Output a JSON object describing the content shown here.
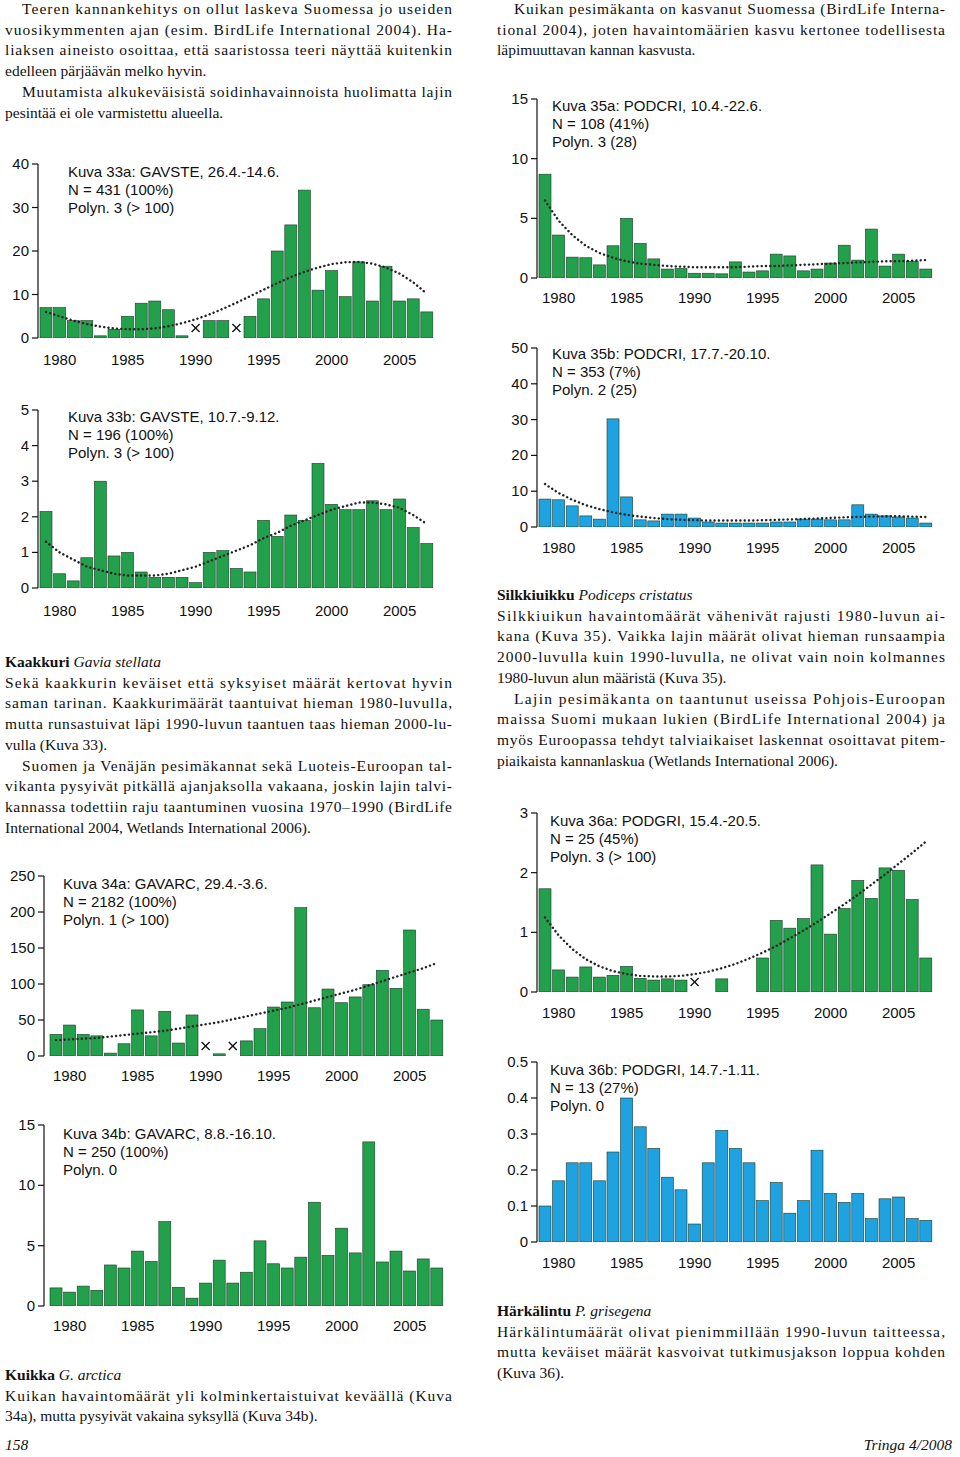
{
  "document": {
    "left_intro": {
      "paragraphs": [
        [
          "Teeren kannankehitys on ollut laskeva Suomessa jo useiden",
          "vuosikymmenten ajan (esim. BirdLife International 2004). Ha-",
          "liaksen aineisto osoittaa, että saaristossa teeri näyttää kuitenkin",
          "edelleen pärjäävän melko hyvin."
        ],
        [
          "Muutamista alkukeväisistä soidinhavainnoista huolimatta lajin",
          "pesintää ei ole varmistettu alueella."
        ]
      ]
    },
    "kaakkuri": {
      "heading": "Kaakkuri",
      "latin": "Gavia stellata",
      "paragraphs": [
        [
          "Sekä kaakkurin keväiset että syksyiset määrät kertovat hyvin",
          "saman tarinan. Kaakkurimäärät taantuivat hieman 1980-luvulla,",
          "mutta runsastuivat läpi 1990-luvun taantuen taas hieman 2000-lu-",
          "vulla (Kuva 33)."
        ],
        [
          "Suomen ja Venäjän pesimäkannat sekä Luoteis-Euroopan tal-",
          "vikanta pysyivät pitkällä ajanjaksolla vakaana, joskin lajin talvi-",
          "kannassa todettiin raju taantuminen vuosina 1970–1990 (BirdLife",
          "International 2004, Wetlands International 2006)."
        ]
      ]
    },
    "kuikka": {
      "heading": "Kuikka",
      "latin": "G. arctica",
      "paragraphs": [
        [
          "Kuikan havaintomäärät yli kolminkertaistuivat keväällä (Kuva",
          "34a), mutta pysyivät vakaina syksyllä (Kuva 34b)."
        ]
      ]
    },
    "right_intro": {
      "paragraphs": [
        [
          "Kuikan pesimäkanta on kasvanut Suomessa (BirdLife Interna-",
          "tional 2004), joten havaintomäärien kasvu kertonee todellisesta",
          "läpimuuttavan kannan kasvusta."
        ]
      ]
    },
    "silkkiuikku": {
      "heading": "Silkkiuikku",
      "latin": "Podiceps cristatus",
      "paragraphs": [
        [
          "Silkkiuikun havaintomäärät vähenivät rajusti 1980-luvun ai-",
          "kana (Kuva 35). Vaikka lajin määrät olivat hieman runsaampia",
          "2000-luvulla kuin 1990-luvulla, ne olivat vain noin kolmannes",
          "1980-luvun alun määristä (Kuva 35)."
        ],
        [
          "Lajin pesimäkanta on taantunut useissa Pohjois-Euroopan",
          "maissa Suomi mukaan lukien (BirdLife International 2004) ja",
          "myös Euroopassa tehdyt talviaikaiset laskennat osoittavat pitem-",
          "piaikaista kannanlaskua (Wetlands International 2006)."
        ]
      ]
    },
    "harkalintu": {
      "heading": "Härkälintu",
      "latin": "P. grisegena",
      "paragraphs": [
        [
          "Härkälintumäärät olivat pienimmillään 1990-luvun taitteessa,",
          "mutta keväiset määrät kasvoivat tutkimusjakson loppua kohden",
          "(Kuva 36)."
        ]
      ]
    },
    "footer": {
      "page": "158",
      "journal": "Tringa 4/2008"
    }
  },
  "chart_data": [
    {
      "type": "bar",
      "title": "Kuva 33a: GAVSTE, 26.4.-14.6.",
      "annotations": [
        "N = 431 (100%)",
        "Polyn. 3 (> 100)"
      ],
      "categories": [
        null,
        "1980",
        null,
        null,
        null,
        null,
        "1985",
        null,
        null,
        null,
        null,
        "1990",
        null,
        null,
        null,
        null,
        "1995",
        null,
        null,
        null,
        null,
        "2000",
        null,
        null,
        null,
        null,
        "2005",
        null,
        null
      ],
      "series": [
        {
          "type": "bar",
          "color": "#22a04b",
          "values": [
            7,
            7,
            4,
            4,
            0.5,
            2,
            5,
            8,
            8.5,
            6.5,
            0.5,
            null,
            4,
            4,
            null,
            5,
            9,
            20,
            26,
            34,
            11,
            15.5,
            9.5,
            17.5,
            8.5,
            16.5,
            8.5,
            9,
            6
          ]
        },
        {
          "type": "line",
          "line_style": "dotted",
          "color": "#222222",
          "values": [
            6,
            5,
            4,
            3.2,
            2.6,
            2.2,
            2,
            2,
            2.2,
            2.7,
            3.4,
            4.3,
            5.4,
            6.7,
            8.1,
            9.6,
            11.1,
            12.6,
            14,
            15.2,
            16.2,
            17,
            17.4,
            17.5,
            17.1,
            16.2,
            14.8,
            12.8,
            10.2
          ]
        }
      ],
      "ylim": [
        0,
        40
      ],
      "yticks": [
        0,
        10,
        20,
        30,
        40
      ]
    },
    {
      "type": "bar",
      "title": "Kuva 33b: GAVSTE, 10.7.-9.12.",
      "annotations": [
        "N = 196 (100%)",
        "Polyn. 3 (> 100)"
      ],
      "categories": [
        null,
        "1980",
        null,
        null,
        null,
        null,
        "1985",
        null,
        null,
        null,
        null,
        "1990",
        null,
        null,
        null,
        null,
        "1995",
        null,
        null,
        null,
        null,
        "2000",
        null,
        null,
        null,
        null,
        "2005",
        null,
        null
      ],
      "series": [
        {
          "type": "bar",
          "color": "#22a04b",
          "values": [
            2.15,
            0.4,
            0.2,
            0.85,
            3.0,
            0.9,
            1.0,
            0.45,
            0.3,
            0.3,
            0.3,
            0.15,
            1.0,
            1.05,
            0.55,
            0.45,
            1.9,
            1.45,
            2.05,
            1.9,
            3.5,
            2.35,
            2.2,
            2.2,
            2.45,
            2.2,
            2.5,
            1.7,
            1.25
          ]
        },
        {
          "type": "line",
          "line_style": "dotted",
          "color": "#222222",
          "values": [
            1.3,
            1.0,
            0.8,
            0.6,
            0.5,
            0.4,
            0.35,
            0.35,
            0.35,
            0.4,
            0.5,
            0.6,
            0.75,
            0.9,
            1.05,
            1.2,
            1.4,
            1.55,
            1.75,
            1.9,
            2.05,
            2.2,
            2.3,
            2.4,
            2.4,
            2.35,
            2.25,
            2.05,
            1.8
          ]
        }
      ],
      "ylim": [
        0,
        5
      ],
      "yticks": [
        0,
        1,
        2,
        3,
        4,
        5
      ]
    },
    {
      "type": "bar",
      "title": "Kuva 34a: GAVARC, 29.4.-3.6.",
      "annotations": [
        "N = 2182 (100%)",
        "Polyn. 1 (> 100)"
      ],
      "categories": [
        null,
        "1980",
        null,
        null,
        null,
        null,
        "1985",
        null,
        null,
        null,
        null,
        "1990",
        null,
        null,
        null,
        null,
        "1995",
        null,
        null,
        null,
        null,
        "2000",
        null,
        null,
        null,
        null,
        "2005",
        null,
        null
      ],
      "series": [
        {
          "type": "bar",
          "color": "#22a04b",
          "values": [
            30,
            43,
            30,
            28,
            4,
            17,
            64,
            28,
            62,
            18,
            57,
            null,
            3,
            null,
            21,
            38,
            68,
            75,
            206,
            67,
            93,
            74,
            82,
            99,
            119,
            94,
            175,
            65,
            50
          ]
        },
        {
          "type": "line",
          "line_style": "dotted",
          "color": "#222222",
          "values": [
            22,
            23,
            24,
            25,
            27,
            29,
            31,
            33,
            35,
            38,
            41,
            44,
            47,
            51,
            55,
            59,
            63,
            67,
            72,
            77,
            82,
            87,
            92,
            98,
            104,
            110,
            116,
            122,
            129
          ]
        }
      ],
      "ylim": [
        0,
        250
      ],
      "yticks": [
        0,
        50,
        100,
        150,
        200,
        250
      ]
    },
    {
      "type": "bar",
      "title": "Kuva 34b: GAVARC, 8.8.-16.10.",
      "annotations": [
        "N = 250 (100%)",
        "Polyn. 0"
      ],
      "categories": [
        null,
        "1980",
        null,
        null,
        null,
        null,
        "1985",
        null,
        null,
        null,
        null,
        "1990",
        null,
        null,
        null,
        null,
        "1995",
        null,
        null,
        null,
        null,
        "2000",
        null,
        null,
        null,
        null,
        "2005",
        null,
        null
      ],
      "series": [
        {
          "type": "bar",
          "color": "#22a04b",
          "values": [
            1.5,
            1.15,
            1.65,
            1.3,
            3.4,
            3.15,
            4.55,
            3.7,
            7.0,
            1.55,
            0.65,
            1.9,
            3.8,
            1.9,
            2.8,
            5.4,
            3.5,
            3.15,
            4.05,
            8.6,
            4.2,
            6.45,
            4.4,
            13.6,
            3.65,
            4.55,
            2.9,
            3.9,
            3.15
          ]
        }
      ],
      "ylim": [
        0,
        15
      ],
      "yticks": [
        0,
        5,
        10,
        15
      ]
    },
    {
      "type": "bar",
      "title": "Kuva 35a: PODCRI, 10.4.-22.6.",
      "annotations": [
        "N = 108 (41%)",
        "Polyn. 3 (28)"
      ],
      "categories": [
        null,
        "1980",
        null,
        null,
        null,
        null,
        "1985",
        null,
        null,
        null,
        null,
        "1990",
        null,
        null,
        null,
        null,
        "1995",
        null,
        null,
        null,
        null,
        "2000",
        null,
        null,
        null,
        null,
        "2005",
        null,
        null
      ],
      "series": [
        {
          "type": "bar",
          "color": "#22a04b",
          "values": [
            8.7,
            3.6,
            1.75,
            1.7,
            1.1,
            2.7,
            5.0,
            2.9,
            1.6,
            0.75,
            0.8,
            0.4,
            0.4,
            0.35,
            1.35,
            0.5,
            0.6,
            2.0,
            1.85,
            0.6,
            0.75,
            1.25,
            2.75,
            1.5,
            4.1,
            1.0,
            2.0,
            1.4,
            0.75
          ]
        },
        {
          "type": "line",
          "line_style": "dotted",
          "color": "#222222",
          "values": [
            6.5,
            4.8,
            3.6,
            2.7,
            2.1,
            1.7,
            1.4,
            1.2,
            1.1,
            1.0,
            0.95,
            0.9,
            0.9,
            0.9,
            0.9,
            0.95,
            1.0,
            1.0,
            1.05,
            1.1,
            1.15,
            1.2,
            1.25,
            1.3,
            1.35,
            1.4,
            1.4,
            1.45,
            1.5
          ]
        }
      ],
      "ylim": [
        0,
        15
      ],
      "yticks": [
        0,
        5,
        10,
        15
      ]
    },
    {
      "type": "bar",
      "title": "Kuva 35b: PODCRI, 17.7.-20.10.",
      "annotations": [
        "N = 353 (7%)",
        "Polyn. 2 (25)"
      ],
      "categories": [
        null,
        "1980",
        null,
        null,
        null,
        null,
        "1985",
        null,
        null,
        null,
        null,
        "1990",
        null,
        null,
        null,
        null,
        "1995",
        null,
        null,
        null,
        null,
        "2000",
        null,
        null,
        null,
        null,
        "2005",
        null,
        null
      ],
      "series": [
        {
          "type": "bar",
          "color": "#1ea2e0",
          "values": [
            7.8,
            7.6,
            5.9,
            3.1,
            2.2,
            30.2,
            8.4,
            2.0,
            1.7,
            3.6,
            3.6,
            2.5,
            1.4,
            1.1,
            1.1,
            1.1,
            1.1,
            1.4,
            1.4,
            2.2,
            2.2,
            2.0,
            2.0,
            6.2,
            3.6,
            3.1,
            2.8,
            2.5,
            1.1
          ]
        },
        {
          "type": "line",
          "line_style": "dotted",
          "color": "#222222",
          "values": [
            12,
            9.5,
            7.6,
            6.1,
            5,
            4.1,
            3.4,
            2.9,
            2.5,
            2.2,
            2,
            1.9,
            1.8,
            1.8,
            1.8,
            1.8,
            1.9,
            2,
            2.1,
            2.2,
            2.4,
            2.5,
            2.7,
            2.8,
            2.9,
            3,
            3,
            2.9,
            2.8
          ]
        }
      ],
      "ylim": [
        0,
        50
      ],
      "yticks": [
        0,
        10,
        20,
        30,
        40,
        50
      ]
    },
    {
      "type": "bar",
      "title": "Kuva 36a: PODGRI, 15.4.-20.5.",
      "annotations": [
        "N = 25 (45%)",
        "Polyn. 3 (> 100)"
      ],
      "categories": [
        null,
        "1980",
        null,
        null,
        null,
        null,
        "1985",
        null,
        null,
        null,
        null,
        "1990",
        null,
        null,
        null,
        null,
        "1995",
        null,
        null,
        null,
        null,
        "2000",
        null,
        null,
        null,
        null,
        "2005",
        null,
        null
      ],
      "series": [
        {
          "type": "bar",
          "color": "#22a04b",
          "values": [
            1.73,
            0.37,
            0.25,
            0.42,
            0.25,
            0.28,
            0.43,
            0.23,
            0.2,
            0.22,
            0.2,
            null,
            0,
            0.22,
            0,
            0,
            0.57,
            1.2,
            1.07,
            1.23,
            2.13,
            0.97,
            1.4,
            1.87,
            1.57,
            2.08,
            2.04,
            1.55,
            0.57
          ]
        },
        {
          "type": "line",
          "line_style": "dotted",
          "color": "#222222",
          "values": [
            1.25,
            0.95,
            0.72,
            0.55,
            0.43,
            0.35,
            0.3,
            0.27,
            0.26,
            0.26,
            0.27,
            0.3,
            0.34,
            0.4,
            0.47,
            0.56,
            0.66,
            0.77,
            0.9,
            1.03,
            1.17,
            1.32,
            1.47,
            1.63,
            1.8,
            1.97,
            2.15,
            2.33,
            2.52
          ]
        }
      ],
      "ylim": [
        0,
        3
      ],
      "yticks": [
        0,
        1,
        2,
        3
      ]
    },
    {
      "type": "bar",
      "title": "Kuva 36b: PODGRI, 14.7.-1.11.",
      "annotations": [
        "N = 13 (27%)",
        "Polyn. 0"
      ],
      "categories": [
        null,
        "1980",
        null,
        null,
        null,
        null,
        "1985",
        null,
        null,
        null,
        null,
        "1990",
        null,
        null,
        null,
        null,
        "1995",
        null,
        null,
        null,
        null,
        "2000",
        null,
        null,
        null,
        null,
        "2005",
        null,
        null
      ],
      "series": [
        {
          "type": "bar",
          "color": "#1ea2e0",
          "values": [
            0.1,
            0.17,
            0.22,
            0.22,
            0.17,
            0.25,
            0.4,
            0.32,
            0.26,
            0.18,
            0.145,
            0.05,
            0.22,
            0.31,
            0.26,
            0.22,
            0.115,
            0.165,
            0.08,
            0.115,
            0.255,
            0.135,
            0.11,
            0.135,
            0.065,
            0.12,
            0.125,
            0.065,
            0.06
          ]
        }
      ],
      "ylim": [
        0,
        0.5
      ],
      "yticks": [
        0,
        0.1,
        0.2,
        0.3,
        0.4,
        0.5
      ]
    }
  ]
}
